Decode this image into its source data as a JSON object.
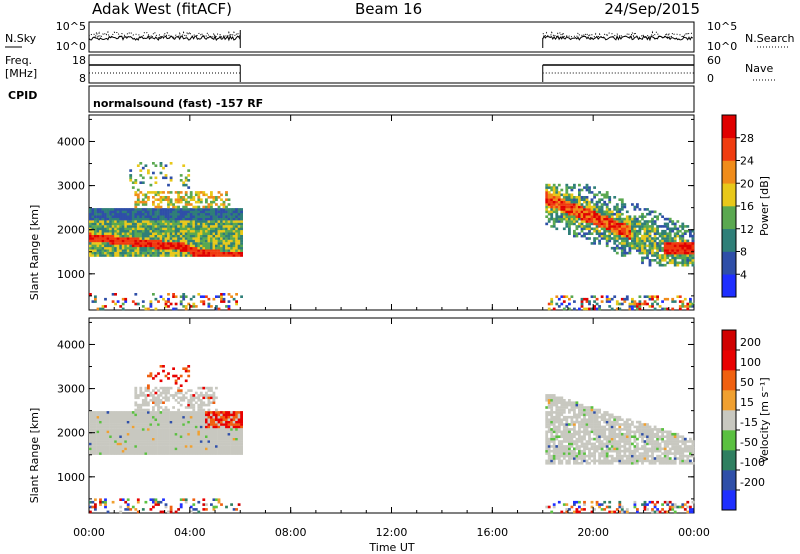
{
  "header": {
    "station": "Adak West (fitACF)",
    "beam": "Beam 16",
    "date": "24/Sep/2015"
  },
  "panels": {
    "nsky_label": "N.Sky",
    "nsky_ticks": [
      "10^5",
      "10^0"
    ],
    "nsearch_label": "N.Search",
    "nsearch_ticks": [
      "10^5",
      "10^0"
    ],
    "freq_label": "Freq.",
    "freq_unit": "[MHz]",
    "freq_ticks": [
      "18",
      "8"
    ],
    "nave_label": "Nave",
    "nave_ticks": [
      "60",
      "0"
    ],
    "cpid_label": "CPID",
    "cpid_text": "normalsound (fast) -157 RF"
  },
  "chart_data": [
    {
      "type": "heatmap",
      "title": "",
      "xlabel": "Time UT",
      "ylabel": "Slant Range [km]",
      "xlim": [
        0,
        24
      ],
      "ylim": [
        180,
        4600
      ],
      "x_tick_labels": [
        "00:00",
        "04:00",
        "08:00",
        "12:00",
        "16:00",
        "20:00",
        "00:00"
      ],
      "x_ticks": [
        0,
        4,
        8,
        12,
        16,
        20,
        24
      ],
      "y_ticks": [
        1000,
        2000,
        3000,
        4000
      ],
      "colorbar_label": "Power [dB]",
      "colorbar_ticks": [
        4,
        8,
        12,
        16,
        20,
        24,
        28
      ],
      "colorbar_range": [
        0,
        32
      ],
      "colors": [
        "#1f2fff",
        "#2f4fa8",
        "#2f7f78",
        "#5aa850",
        "#e8c81a",
        "#f08c1a",
        "#f03c10",
        "#e00000"
      ],
      "data_intervals": [
        [
          0,
          6
        ],
        [
          18,
          24
        ]
      ]
    },
    {
      "type": "heatmap",
      "title": "",
      "xlabel": "Time UT",
      "ylabel": "Slant Range [km]",
      "xlim": [
        0,
        24
      ],
      "ylim": [
        180,
        4600
      ],
      "x_ticks": [
        0,
        4,
        8,
        12,
        16,
        20,
        24
      ],
      "y_ticks": [
        1000,
        2000,
        3000,
        4000
      ],
      "colorbar_label": "Velocity [m s⁻¹]",
      "colorbar_ticks": [
        "200",
        "100",
        "50",
        "15",
        "-15",
        "-50",
        "-100",
        "-200"
      ],
      "colors": [
        "#1f2fff",
        "#2f4fa8",
        "#2f7f60",
        "#5ac040",
        "#c8c8c0",
        "#f0a030",
        "#f06010",
        "#e80000",
        "#d00000"
      ],
      "data_intervals": [
        [
          0,
          6
        ],
        [
          18,
          24
        ]
      ]
    }
  ]
}
